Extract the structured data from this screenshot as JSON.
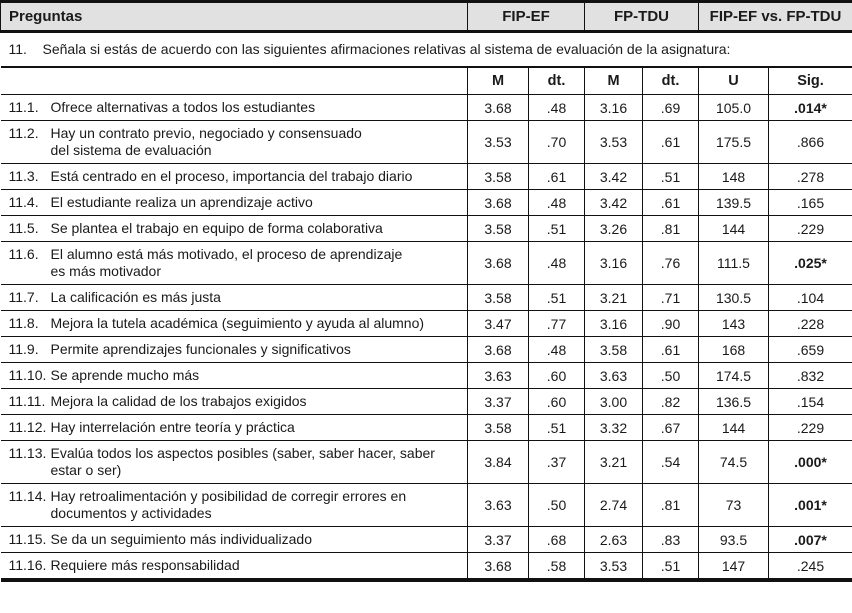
{
  "colors": {
    "header_bg": "#e1e1e1",
    "border": "#111111",
    "text": "#1a1a1a"
  },
  "table": {
    "header": {
      "preguntas": "Preguntas",
      "groups": [
        {
          "label": "FIP-EF"
        },
        {
          "label": "FP-TDU"
        },
        {
          "label": "FIP-EF vs. FP-TDU"
        }
      ]
    },
    "question": {
      "number": "11.",
      "text": "Señala si estás de acuerdo con las siguientes afirmaciones relativas al sistema de evaluación de la asignatura:"
    },
    "subheader": {
      "m1": "M",
      "dt1": "dt.",
      "m2": "M",
      "dt2": "dt.",
      "u": "U",
      "sig": "Sig."
    },
    "rows": [
      {
        "num": "11.1.",
        "text": "Ofrece alternativas a todos los estudiantes",
        "m1": "3.68",
        "dt1": ".48",
        "m2": "3.16",
        "dt2": ".69",
        "u": "105.0",
        "sig": ".014*",
        "sig_bold": true
      },
      {
        "num": "11.2.",
        "text": "Hay un contrato previo, negociado y consensuado\ndel sistema de evaluación",
        "m1": "3.53",
        "dt1": ".70",
        "m2": "3.53",
        "dt2": ".61",
        "u": "175.5",
        "sig": ".866",
        "sig_bold": false
      },
      {
        "num": "11.3.",
        "text": "Está centrado en el proceso, importancia del trabajo diario",
        "m1": "3.58",
        "dt1": ".61",
        "m2": "3.42",
        "dt2": ".51",
        "u": "148",
        "sig": ".278",
        "sig_bold": false
      },
      {
        "num": "11.4.",
        "text": "El estudiante realiza un aprendizaje activo",
        "m1": "3.68",
        "dt1": ".48",
        "m2": "3.42",
        "dt2": ".61",
        "u": "139.5",
        "sig": ".165",
        "sig_bold": false
      },
      {
        "num": "11.5.",
        "text": "Se plantea el trabajo en equipo de forma colaborativa",
        "m1": "3.58",
        "dt1": ".51",
        "m2": "3.26",
        "dt2": ".81",
        "u": "144",
        "sig": ".229",
        "sig_bold": false
      },
      {
        "num": "11.6.",
        "text": "El alumno está más motivado, el proceso de aprendizaje\nes más motivador",
        "m1": "3.68",
        "dt1": ".48",
        "m2": "3.16",
        "dt2": ".76",
        "u": "111.5",
        "sig": ".025*",
        "sig_bold": true
      },
      {
        "num": "11.7.",
        "text": "La calificación es más justa",
        "m1": "3.58",
        "dt1": ".51",
        "m2": "3.21",
        "dt2": ".71",
        "u": "130.5",
        "sig": ".104",
        "sig_bold": false
      },
      {
        "num": "11.8.",
        "text": "Mejora la tutela académica (seguimiento y ayuda al alumno)",
        "m1": "3.47",
        "dt1": ".77",
        "m2": "3.16",
        "dt2": ".90",
        "u": "143",
        "sig": ".228",
        "sig_bold": false
      },
      {
        "num": "11.9.",
        "text": "Permite aprendizajes funcionales y significativos",
        "m1": "3.68",
        "dt1": ".48",
        "m2": "3.58",
        "dt2": ".61",
        "u": "168",
        "sig": ".659",
        "sig_bold": false
      },
      {
        "num": "11.10.",
        "text": "Se aprende mucho más",
        "m1": "3.63",
        "dt1": ".60",
        "m2": "3.63",
        "dt2": ".50",
        "u": "174.5",
        "sig": ".832",
        "sig_bold": false
      },
      {
        "num": "11.11.",
        "text": "Mejora la calidad de los trabajos exigidos",
        "m1": "3.37",
        "dt1": ".60",
        "m2": "3.00",
        "dt2": ".82",
        "u": "136.5",
        "sig": ".154",
        "sig_bold": false
      },
      {
        "num": "11.12.",
        "text": "Hay interrelación entre teoría y práctica",
        "m1": "3.58",
        "dt1": ".51",
        "m2": "3.32",
        "dt2": ".67",
        "u": "144",
        "sig": ".229",
        "sig_bold": false
      },
      {
        "num": "11.13.",
        "text": "Evalúa todos los aspectos posibles (saber, saber hacer, saber\nestar o ser)",
        "m1": "3.84",
        "dt1": ".37",
        "m2": "3.21",
        "dt2": ".54",
        "u": "74.5",
        "sig": ".000*",
        "sig_bold": true
      },
      {
        "num": "11.14.",
        "text": "Hay retroalimentación y posibilidad de corregir errores en\ndocumentos y actividades",
        "m1": "3.63",
        "dt1": ".50",
        "m2": "2.74",
        "dt2": ".81",
        "u": "73",
        "sig": ".001*",
        "sig_bold": true
      },
      {
        "num": "11.15.",
        "text": "Se da un seguimiento más individualizado",
        "m1": "3.37",
        "dt1": ".68",
        "m2": "2.63",
        "dt2": ".83",
        "u": "93.5",
        "sig": ".007*",
        "sig_bold": true
      },
      {
        "num": "11.16.",
        "text": "Requiere más responsabilidad",
        "m1": "3.68",
        "dt1": ".58",
        "m2": "3.53",
        "dt2": ".51",
        "u": "147",
        "sig": ".245",
        "sig_bold": false
      }
    ]
  }
}
